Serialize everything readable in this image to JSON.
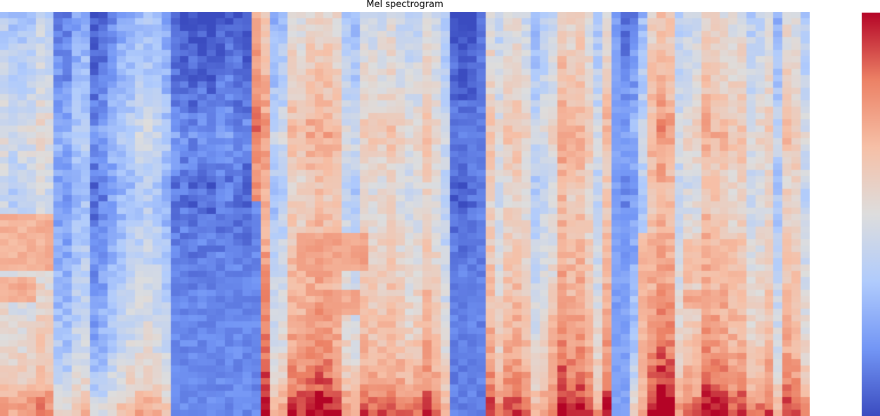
{
  "chart_data": {
    "type": "heatmap",
    "title": "Mel spectrogram",
    "xlabel": "",
    "ylabel": "",
    "n_frames": 90,
    "n_mels": 64,
    "colormap": "coolwarm",
    "colormap_stops": [
      "#3b4cc0",
      "#7396f5",
      "#b0cbfc",
      "#dddddd",
      "#f6bfa6",
      "#ec8165",
      "#b40426"
    ],
    "value_range": [
      0,
      1
    ],
    "colorbar": true,
    "frame_level": [
      0.45,
      0.4,
      0.42,
      0.44,
      0.5,
      0.48,
      0.22,
      0.2,
      0.3,
      0.34,
      0.12,
      0.16,
      0.24,
      0.3,
      0.34,
      0.38,
      0.4,
      0.36,
      0.3,
      0.14,
      0.12,
      0.1,
      0.11,
      0.1,
      0.12,
      0.14,
      0.12,
      0.1,
      0.8,
      0.72,
      0.35,
      0.4,
      0.62,
      0.6,
      0.66,
      0.68,
      0.66,
      0.62,
      0.44,
      0.38,
      0.56,
      0.54,
      0.55,
      0.58,
      0.52,
      0.48,
      0.5,
      0.6,
      0.52,
      0.4,
      0.1,
      0.08,
      0.1,
      0.2,
      0.6,
      0.48,
      0.58,
      0.6,
      0.54,
      0.38,
      0.44,
      0.5,
      0.7,
      0.64,
      0.66,
      0.58,
      0.42,
      0.64,
      0.56,
      0.18,
      0.22,
      0.38,
      0.66,
      0.74,
      0.7,
      0.44,
      0.5,
      0.52,
      0.68,
      0.64,
      0.62,
      0.58,
      0.6,
      0.46,
      0.5,
      0.56,
      0.36,
      0.6,
      0.58,
      0.44
    ],
    "band_profile": [
      {
        "mel": 0,
        "boost": 0.35
      },
      {
        "mel": 4,
        "boost": 0.22
      },
      {
        "mel": 10,
        "boost": 0.12
      },
      {
        "mel": 20,
        "boost": 0.05
      },
      {
        "mel": 28,
        "boost": 0.0
      },
      {
        "mel": 36,
        "boost": -0.04
      },
      {
        "mel": 44,
        "boost": 0.06
      },
      {
        "mel": 50,
        "boost": -0.02
      },
      {
        "mel": 58,
        "boost": -0.06
      },
      {
        "mel": 63,
        "boost": -0.1
      }
    ],
    "bright_regions": [
      {
        "frames": [
          61,
          65
        ],
        "mels": [
          48,
          63
        ],
        "level": 0.7
      },
      {
        "frames": [
          35,
          39
        ],
        "mels": [
          44,
          47
        ],
        "level": 0.72
      },
      {
        "frames": [
          33,
          40
        ],
        "mels": [
          35,
          40
        ],
        "level": 0.74
      },
      {
        "frames": [
          0,
          5
        ],
        "mels": [
          32,
          40
        ],
        "level": 0.7
      },
      {
        "frames": [
          0,
          3
        ],
        "mels": [
          42,
          45
        ],
        "level": 0.72
      },
      {
        "frames": [
          71,
          73
        ],
        "mels": [
          35,
          63
        ],
        "level": 0.68
      },
      {
        "frames": [
          76,
          80
        ],
        "mels": [
          44,
          46
        ],
        "level": 0.74
      },
      {
        "frames": [
          76,
          81
        ],
        "mels": [
          36,
          42
        ],
        "level": 0.66
      }
    ],
    "dark_regions": [
      {
        "frames": [
          19,
          28
        ],
        "mels": [
          30,
          63
        ],
        "level": 0.1
      },
      {
        "frames": [
          50,
          53
        ],
        "mels": [
          0,
          63
        ],
        "level": 0.08
      },
      {
        "frames": [
          68,
          69
        ],
        "mels": [
          0,
          63
        ],
        "level": 0.16
      }
    ]
  }
}
